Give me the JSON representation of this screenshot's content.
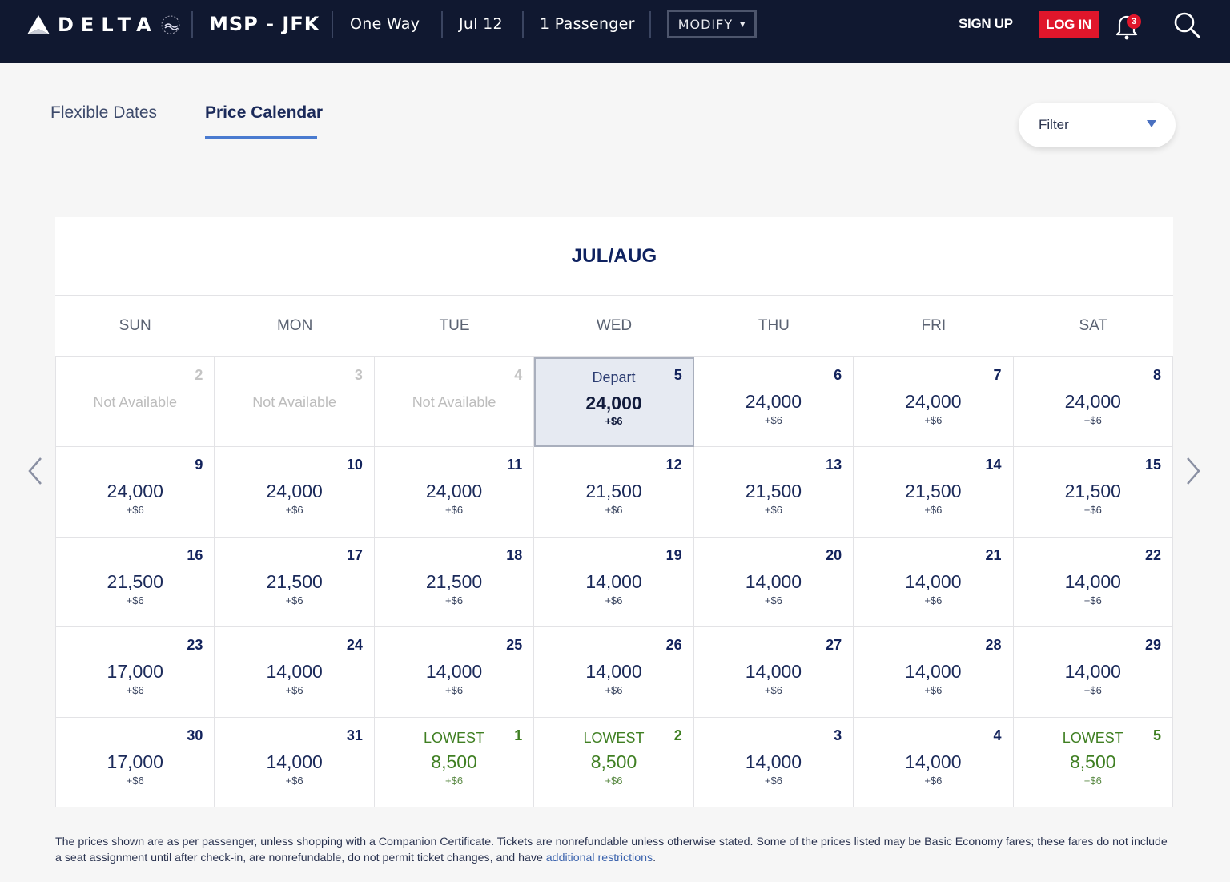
{
  "header": {
    "brand": "DELTA",
    "route": "MSP - JFK",
    "trip_type": "One Way",
    "date": "Jul 12",
    "passengers": "1 Passenger",
    "modify_label": "MODIFY",
    "signup_label": "SIGN UP",
    "login_label": "LOG IN",
    "notification_count": "3",
    "colors": {
      "bar": "#101830",
      "login": "#e0162b"
    }
  },
  "tabs": [
    {
      "label": "Flexible Dates",
      "active": false
    },
    {
      "label": "Price Calendar",
      "active": true
    }
  ],
  "filter": {
    "label": "Filter"
  },
  "calendar": {
    "title": "JUL/AUG",
    "days_of_week": [
      "SUN",
      "MON",
      "TUE",
      "WED",
      "THU",
      "FRI",
      "SAT"
    ],
    "cells": [
      {
        "day": "2",
        "status": "na",
        "label": "Not Available"
      },
      {
        "day": "3",
        "status": "na",
        "label": "Not Available"
      },
      {
        "day": "4",
        "status": "na",
        "label": "Not Available"
      },
      {
        "day": "5",
        "status": "selected",
        "tag": "Depart",
        "price": "24,000",
        "fee": "+$6"
      },
      {
        "day": "6",
        "status": "normal",
        "price": "24,000",
        "fee": "+$6"
      },
      {
        "day": "7",
        "status": "normal",
        "price": "24,000",
        "fee": "+$6"
      },
      {
        "day": "8",
        "status": "normal",
        "price": "24,000",
        "fee": "+$6"
      },
      {
        "day": "9",
        "status": "normal",
        "price": "24,000",
        "fee": "+$6"
      },
      {
        "day": "10",
        "status": "normal",
        "price": "24,000",
        "fee": "+$6"
      },
      {
        "day": "11",
        "status": "normal",
        "price": "24,000",
        "fee": "+$6"
      },
      {
        "day": "12",
        "status": "normal",
        "price": "21,500",
        "fee": "+$6"
      },
      {
        "day": "13",
        "status": "normal",
        "price": "21,500",
        "fee": "+$6"
      },
      {
        "day": "14",
        "status": "normal",
        "price": "21,500",
        "fee": "+$6"
      },
      {
        "day": "15",
        "status": "normal",
        "price": "21,500",
        "fee": "+$6"
      },
      {
        "day": "16",
        "status": "normal",
        "price": "21,500",
        "fee": "+$6"
      },
      {
        "day": "17",
        "status": "normal",
        "price": "21,500",
        "fee": "+$6"
      },
      {
        "day": "18",
        "status": "normal",
        "price": "21,500",
        "fee": "+$6"
      },
      {
        "day": "19",
        "status": "normal",
        "price": "14,000",
        "fee": "+$6"
      },
      {
        "day": "20",
        "status": "normal",
        "price": "14,000",
        "fee": "+$6"
      },
      {
        "day": "21",
        "status": "normal",
        "price": "14,000",
        "fee": "+$6"
      },
      {
        "day": "22",
        "status": "normal",
        "price": "14,000",
        "fee": "+$6"
      },
      {
        "day": "23",
        "status": "normal",
        "price": "17,000",
        "fee": "+$6"
      },
      {
        "day": "24",
        "status": "normal",
        "price": "14,000",
        "fee": "+$6"
      },
      {
        "day": "25",
        "status": "normal",
        "price": "14,000",
        "fee": "+$6"
      },
      {
        "day": "26",
        "status": "normal",
        "price": "14,000",
        "fee": "+$6"
      },
      {
        "day": "27",
        "status": "normal",
        "price": "14,000",
        "fee": "+$6"
      },
      {
        "day": "28",
        "status": "normal",
        "price": "14,000",
        "fee": "+$6"
      },
      {
        "day": "29",
        "status": "normal",
        "price": "14,000",
        "fee": "+$6"
      },
      {
        "day": "30",
        "status": "normal",
        "price": "17,000",
        "fee": "+$6"
      },
      {
        "day": "31",
        "status": "normal",
        "price": "14,000",
        "fee": "+$6"
      },
      {
        "day": "1",
        "status": "lowest",
        "tag": "LOWEST",
        "price": "8,500",
        "fee": "+$6"
      },
      {
        "day": "2",
        "status": "lowest",
        "tag": "LOWEST",
        "price": "8,500",
        "fee": "+$6"
      },
      {
        "day": "3",
        "status": "normal",
        "price": "14,000",
        "fee": "+$6"
      },
      {
        "day": "4",
        "status": "normal",
        "price": "14,000",
        "fee": "+$6"
      },
      {
        "day": "5",
        "status": "lowest",
        "tag": "LOWEST",
        "price": "8,500",
        "fee": "+$6"
      }
    ],
    "colors": {
      "lowest": "#3f7f22",
      "selected_bg": "#e6eaf2"
    }
  },
  "disclaimer": {
    "text": "The prices shown are as per passenger, unless shopping with a Companion Certificate. Tickets are nonrefundable unless otherwise stated. Some of the prices listed may be Basic Economy fares; these fares do not include a seat assignment until after check-in, are nonrefundable, do not permit ticket changes, and have ",
    "link": "additional restrictions",
    "suffix": "."
  }
}
